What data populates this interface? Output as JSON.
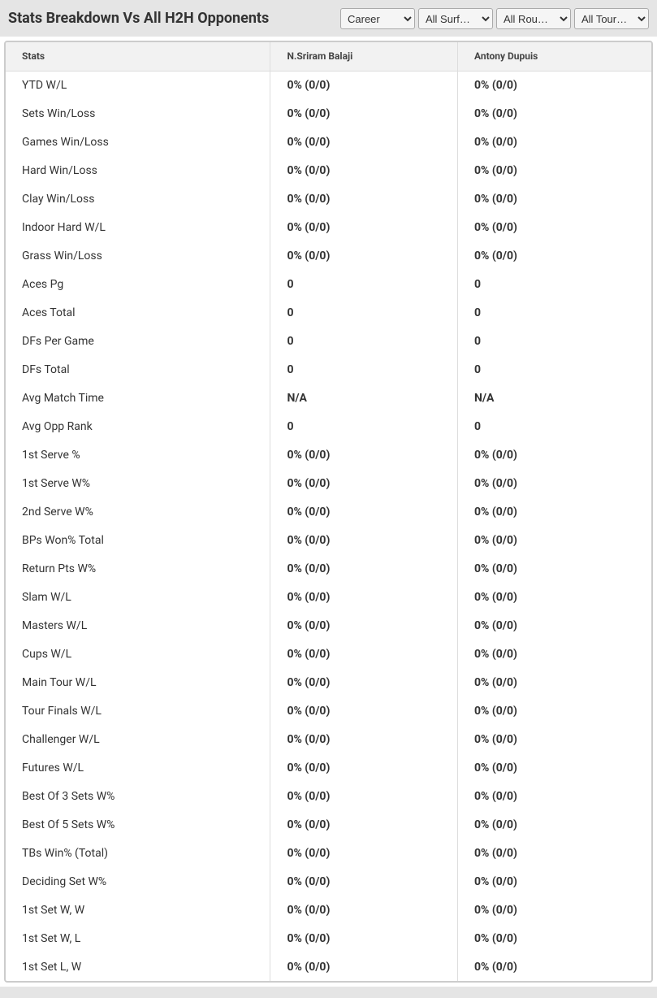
{
  "header": {
    "title": "Stats Breakdown Vs All H2H Opponents"
  },
  "filters": {
    "period": "Career",
    "surface": "All Surf…",
    "round": "All Rou…",
    "tour": "All Tour…"
  },
  "table": {
    "type": "table",
    "background_color": "#ffffff",
    "header_bg": "#f2f2f2",
    "border_color": "#dddddd",
    "columns": [
      {
        "key": "stats",
        "label": "Stats"
      },
      {
        "key": "player1",
        "label": "N.Sriram Balaji"
      },
      {
        "key": "player2",
        "label": "Antony Dupuis"
      }
    ],
    "rows": [
      {
        "stat": "YTD W/L",
        "p1": "0% (0/0)",
        "p2": "0% (0/0)"
      },
      {
        "stat": "Sets Win/Loss",
        "p1": "0% (0/0)",
        "p2": "0% (0/0)"
      },
      {
        "stat": "Games Win/Loss",
        "p1": "0% (0/0)",
        "p2": "0% (0/0)"
      },
      {
        "stat": "Hard Win/Loss",
        "p1": "0% (0/0)",
        "p2": "0% (0/0)"
      },
      {
        "stat": "Clay Win/Loss",
        "p1": "0% (0/0)",
        "p2": "0% (0/0)"
      },
      {
        "stat": "Indoor Hard W/L",
        "p1": "0% (0/0)",
        "p2": "0% (0/0)"
      },
      {
        "stat": "Grass Win/Loss",
        "p1": "0% (0/0)",
        "p2": "0% (0/0)"
      },
      {
        "stat": "Aces Pg",
        "p1": "0",
        "p2": "0"
      },
      {
        "stat": "Aces Total",
        "p1": "0",
        "p2": "0"
      },
      {
        "stat": "DFs Per Game",
        "p1": "0",
        "p2": "0"
      },
      {
        "stat": "DFs Total",
        "p1": "0",
        "p2": "0"
      },
      {
        "stat": "Avg Match Time",
        "p1": "N/A",
        "p2": "N/A"
      },
      {
        "stat": "Avg Opp Rank",
        "p1": "0",
        "p2": "0"
      },
      {
        "stat": "1st Serve %",
        "p1": "0% (0/0)",
        "p2": "0% (0/0)"
      },
      {
        "stat": "1st Serve W%",
        "p1": "0% (0/0)",
        "p2": "0% (0/0)"
      },
      {
        "stat": "2nd Serve W%",
        "p1": "0% (0/0)",
        "p2": "0% (0/0)"
      },
      {
        "stat": "BPs Won% Total",
        "p1": "0% (0/0)",
        "p2": "0% (0/0)"
      },
      {
        "stat": "Return Pts W%",
        "p1": "0% (0/0)",
        "p2": "0% (0/0)"
      },
      {
        "stat": "Slam W/L",
        "p1": "0% (0/0)",
        "p2": "0% (0/0)"
      },
      {
        "stat": "Masters W/L",
        "p1": "0% (0/0)",
        "p2": "0% (0/0)"
      },
      {
        "stat": "Cups W/L",
        "p1": "0% (0/0)",
        "p2": "0% (0/0)"
      },
      {
        "stat": "Main Tour W/L",
        "p1": "0% (0/0)",
        "p2": "0% (0/0)"
      },
      {
        "stat": "Tour Finals W/L",
        "p1": "0% (0/0)",
        "p2": "0% (0/0)"
      },
      {
        "stat": "Challenger W/L",
        "p1": "0% (0/0)",
        "p2": "0% (0/0)"
      },
      {
        "stat": "Futures W/L",
        "p1": "0% (0/0)",
        "p2": "0% (0/0)"
      },
      {
        "stat": "Best Of 3 Sets W%",
        "p1": "0% (0/0)",
        "p2": "0% (0/0)"
      },
      {
        "stat": "Best Of 5 Sets W%",
        "p1": "0% (0/0)",
        "p2": "0% (0/0)"
      },
      {
        "stat": "TBs Win% (Total)",
        "p1": "0% (0/0)",
        "p2": "0% (0/0)"
      },
      {
        "stat": "Deciding Set W%",
        "p1": "0% (0/0)",
        "p2": "0% (0/0)"
      },
      {
        "stat": "1st Set W, W",
        "p1": "0% (0/0)",
        "p2": "0% (0/0)"
      },
      {
        "stat": "1st Set W, L",
        "p1": "0% (0/0)",
        "p2": "0% (0/0)"
      },
      {
        "stat": "1st Set L, W",
        "p1": "0% (0/0)",
        "p2": "0% (0/0)"
      }
    ]
  }
}
